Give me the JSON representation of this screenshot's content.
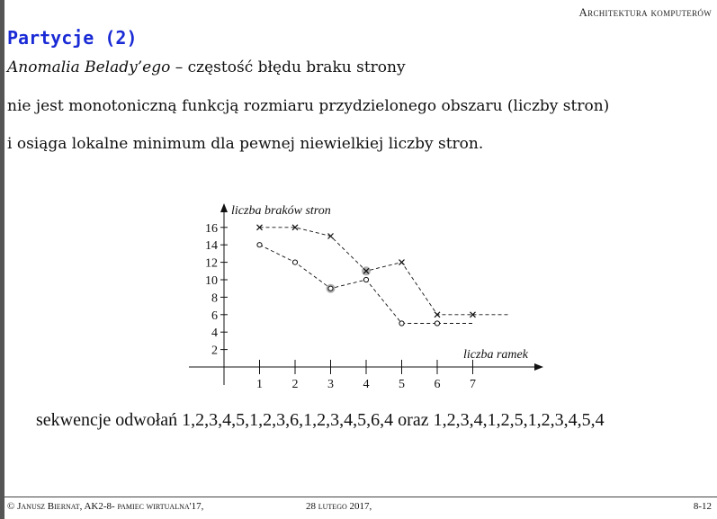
{
  "header": {
    "course": "Architektura komputerów"
  },
  "slide": {
    "title": "Partycje (2)",
    "line1_term": "Anomalia Belady’ego",
    "line1_rest": " – częstość błędu braku strony",
    "line2": "nie jest monotoniczną funkcją rozmiaru przydzielonego obszaru (liczby stron)",
    "line3": "i osiąga lokalne minimum dla pewnej niewielkiej liczby stron."
  },
  "chart_data": {
    "type": "line",
    "ylabel": "liczba braków stron",
    "xlabel": "liczba ramek",
    "x": [
      1,
      2,
      3,
      4,
      5,
      6,
      7
    ],
    "y_ticks": [
      2,
      4,
      6,
      8,
      10,
      12,
      14,
      16
    ],
    "xlim": [
      0,
      8
    ],
    "ylim": [
      0,
      17
    ],
    "series": [
      {
        "marker": "x",
        "line": "dashed",
        "x": [
          1,
          2,
          3,
          4,
          5,
          6,
          7
        ],
        "values": [
          16,
          16,
          15,
          11,
          12,
          6,
          6
        ]
      },
      {
        "marker": "o",
        "line": "dashed",
        "x": [
          1,
          2,
          3,
          4,
          5,
          6
        ],
        "values": [
          14,
          12,
          9,
          10,
          5,
          5
        ]
      }
    ],
    "highlighted_points": [
      {
        "x": 3,
        "y": 9
      },
      {
        "x": 4,
        "y": 11
      }
    ]
  },
  "caption": "sekwencje odwołań 1,2,3,4,5,1,2,3,6,1,2,3,4,5,6,4 oraz 1,2,3,4,1,2,5,1,2,3,4,5,4",
  "footer": {
    "left": "© Janusz Biernat, AK2-8- pamiec wirtualna'17,",
    "middle": "28 lutego 2017,",
    "right": "8-12"
  }
}
